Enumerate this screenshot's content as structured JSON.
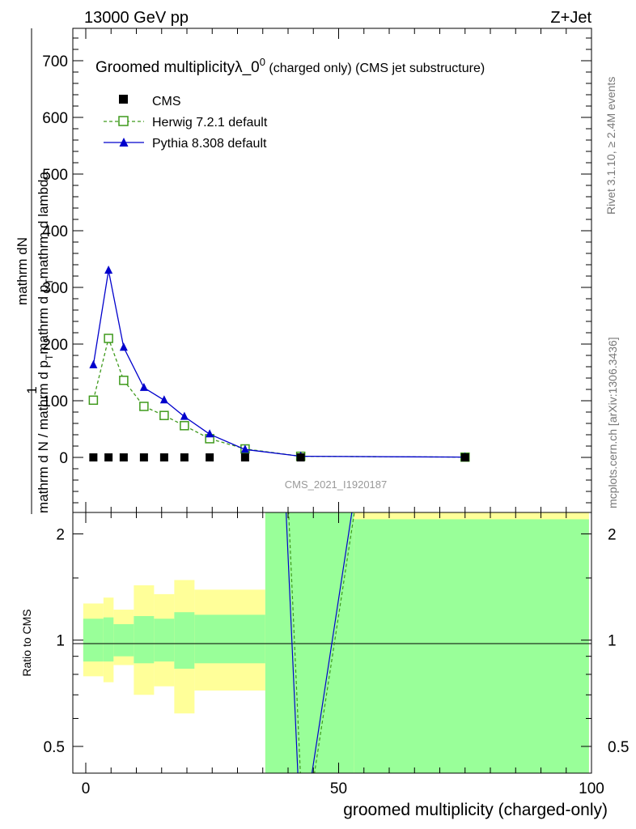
{
  "header": {
    "energy": "13000 GeV pp",
    "process": "Z+Jet",
    "plot_title": "Groomed multiplicityλ_0",
    "plot_title_sup": "0",
    "plot_title_note": " (charged only) (CMS jet substructure)",
    "analysis_id": "CMS_2021_I1920187",
    "rivet_label": "Rivet 3.1.10, ≥ 2.4M events",
    "source_label": "mcplots.cern.ch [arXiv:1306.3436]"
  },
  "main_plot": {
    "ylabel_numerator": "mathrm dN",
    "ylabel_prefix": "1",
    "ylabel_denominator": "mathrm d N / mathrm d p",
    "ylabel_t": "T",
    "ylabel_rest": "mathrm d p",
    "ylabel_t2": "T",
    "ylabel_end": "mathrm d lambda",
    "yticks": [
      "0",
      "100",
      "200",
      "300",
      "400",
      "500",
      "600",
      "700"
    ]
  },
  "ratio_plot": {
    "ylabel": "Ratio to CMS",
    "yticks": [
      "0.5",
      "1",
      "2"
    ],
    "xlabel": "groomed multiplicity (charged-only)",
    "xticks": [
      "0",
      "50",
      "100"
    ]
  },
  "legend": [
    {
      "label": "CMS",
      "marker": "square-filled",
      "color": "#000000"
    },
    {
      "label": "Herwig 7.2.1 default",
      "marker": "square-open",
      "color": "#3f9a1c"
    },
    {
      "label": "Pythia 8.308 default",
      "marker": "triangle-filled",
      "color": "#0000cc"
    }
  ],
  "chart_data": {
    "type": "line",
    "xlim": [
      -2,
      100
    ],
    "ylim": [
      -80,
      750
    ],
    "ratio_ylim": [
      0.42,
      2.3
    ],
    "ratio_scale": "log",
    "series": [
      {
        "name": "CMS",
        "x": [
          1.5,
          4.5,
          7.5,
          11.5,
          15.5,
          19.5,
          24.5,
          31.5,
          42.5,
          75
        ],
        "y": [
          0,
          0,
          0,
          0,
          0,
          0,
          0,
          0,
          0,
          0
        ]
      },
      {
        "name": "Herwig 7.2.1 default",
        "x": [
          1.5,
          4.5,
          7.5,
          11.5,
          15.5,
          19.5,
          24.5,
          31.5,
          42.5,
          75
        ],
        "y": [
          101,
          210,
          136,
          90,
          74,
          56,
          33,
          15,
          2,
          0.5
        ]
      },
      {
        "name": "Pythia 8.308 default",
        "x": [
          1.5,
          4.5,
          7.5,
          11.5,
          15.5,
          19.5,
          24.5,
          31.5,
          42.5,
          75
        ],
        "y": [
          163,
          330,
          194,
          123,
          101,
          72,
          41,
          14,
          2,
          0.5
        ]
      }
    ],
    "ratio_bands": [
      {
        "x0": -0.5,
        "x1": 3.5,
        "yellow": [
          0.79,
          1.27
        ],
        "green": [
          0.87,
          1.15
        ]
      },
      {
        "x0": 3.5,
        "x1": 5.5,
        "yellow": [
          0.76,
          1.32
        ],
        "green": [
          0.87,
          1.16
        ]
      },
      {
        "x0": 5.5,
        "x1": 9.5,
        "yellow": [
          0.85,
          1.22
        ],
        "green": [
          0.9,
          1.11
        ]
      },
      {
        "x0": 9.5,
        "x1": 13.5,
        "yellow": [
          0.7,
          1.43
        ],
        "green": [
          0.86,
          1.17
        ]
      },
      {
        "x0": 13.5,
        "x1": 17.5,
        "yellow": [
          0.74,
          1.35
        ],
        "green": [
          0.87,
          1.15
        ]
      },
      {
        "x0": 17.5,
        "x1": 21.5,
        "yellow": [
          0.62,
          1.48
        ],
        "green": [
          0.83,
          1.2
        ]
      },
      {
        "x0": 21.5,
        "x1": 35.5,
        "yellow": [
          0.72,
          1.39
        ],
        "green": [
          0.86,
          1.18
        ]
      },
      {
        "x0": 35.5,
        "x1": 53.0,
        "yellow": [
          0.01,
          99
        ],
        "green": [
          0.01,
          99
        ]
      },
      {
        "x0": 53.0,
        "x1": 99.5,
        "yellow": [
          0.01,
          99
        ],
        "green": [
          0.01,
          2.2
        ]
      }
    ],
    "ratio_lines": [
      {
        "name": "Herwig 7.2.1 default",
        "x": [
          40.0,
          42.5,
          45.0,
          53.5
        ],
        "y": [
          2.5,
          0.4,
          0.4,
          2.5
        ]
      },
      {
        "name": "Pythia 8.308 default",
        "x": [
          39.5,
          42.0,
          44.5,
          53.0
        ],
        "y": [
          2.5,
          0.4,
          0.4,
          2.5
        ]
      }
    ]
  }
}
